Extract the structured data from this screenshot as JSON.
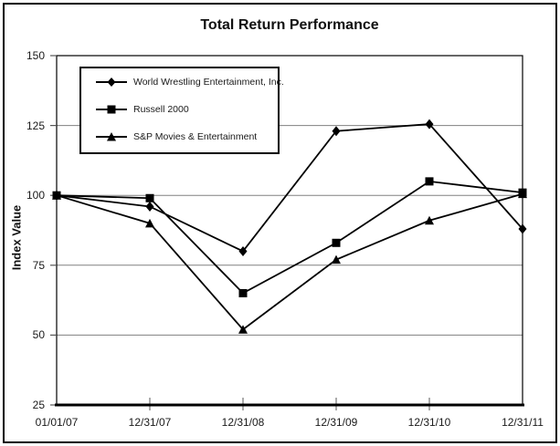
{
  "chart_data": {
    "type": "line",
    "title": "Total Return Performance",
    "xlabel": "",
    "ylabel": "Index Value",
    "ylim": [
      25,
      150
    ],
    "y_ticks": [
      25,
      50,
      75,
      100,
      125,
      150
    ],
    "gridline_values": [
      50,
      75,
      100,
      125
    ],
    "grid": true,
    "legend_position": "inside-top-left",
    "categories": [
      "01/01/07",
      "12/31/07",
      "12/31/08",
      "12/31/09",
      "12/31/10",
      "12/31/11"
    ],
    "series": [
      {
        "name": "World Wrestling Entertainment, Inc.",
        "marker": "diamond",
        "values": [
          100,
          96,
          80,
          123,
          125.5,
          88
        ]
      },
      {
        "name": "Russell 2000",
        "marker": "square",
        "values": [
          100,
          99,
          65,
          83,
          105,
          101
        ]
      },
      {
        "name": "S&P Movies & Entertainment",
        "marker": "triangle",
        "values": [
          100,
          90,
          52,
          77,
          91,
          100.5
        ]
      }
    ],
    "colors": {
      "series_line": "#000000",
      "marker": "#000000",
      "gridline": "#808080",
      "axis": "#000000",
      "background": "#ffffff",
      "frame_border": "#000000"
    }
  }
}
